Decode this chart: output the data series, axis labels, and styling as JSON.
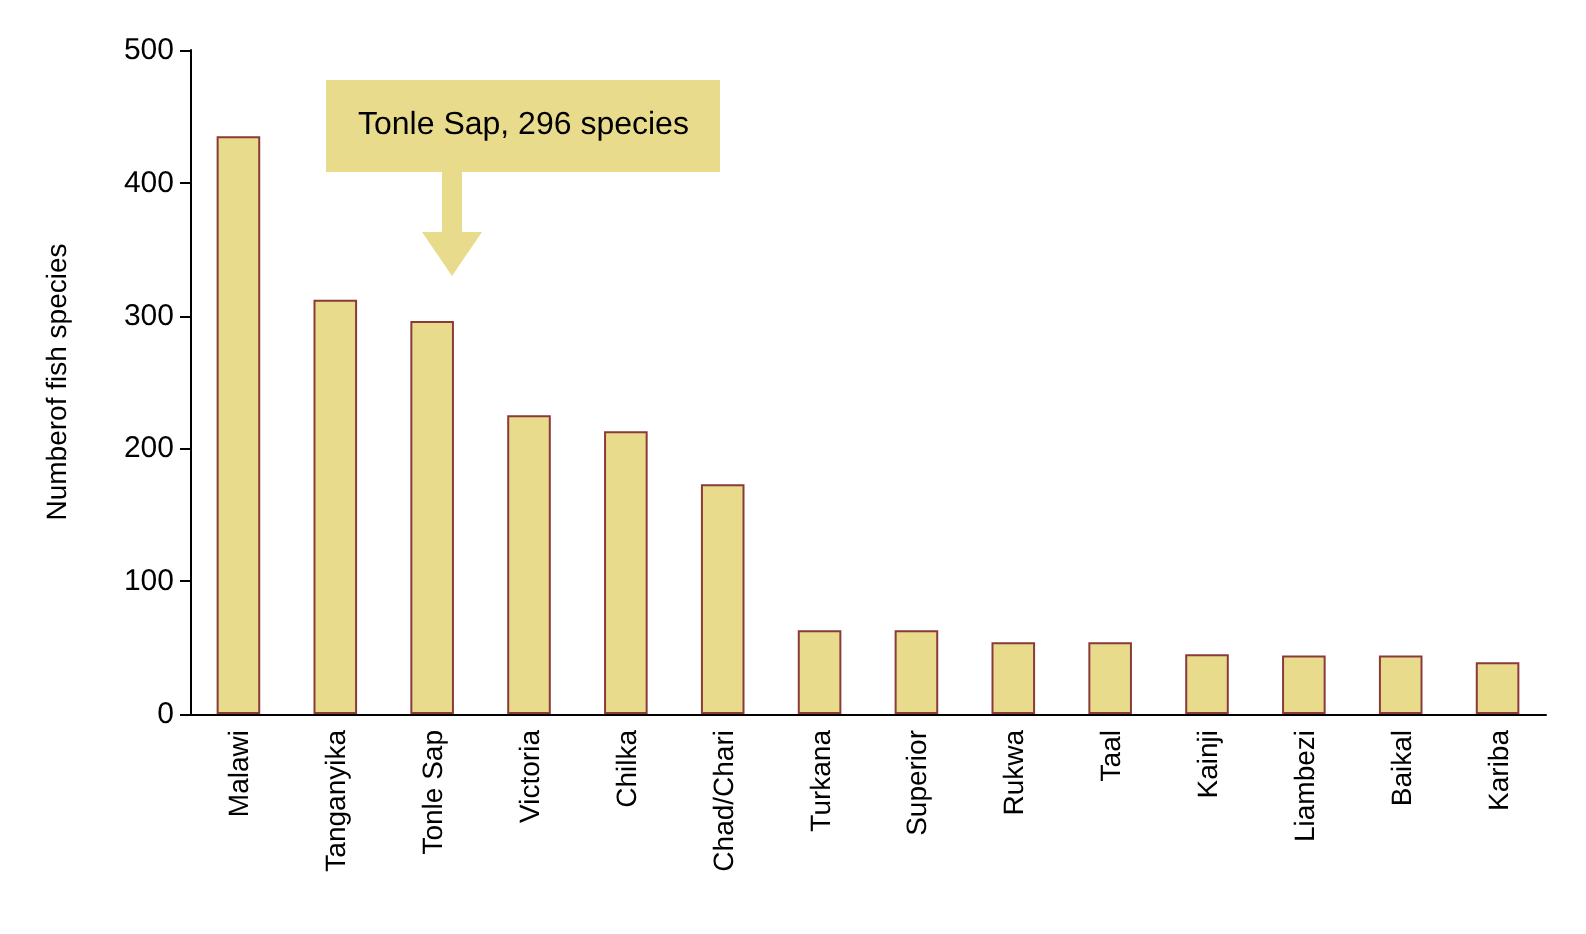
{
  "chart_data": {
    "type": "bar",
    "ylabel": "Numberof fish species",
    "categories": [
      "Malawi",
      "Tanganyika",
      "Tonle Sap",
      "Victoria",
      "Chilka",
      "Chad/Chari",
      "Turkana",
      "Superior",
      "Rukwa",
      "Taal",
      "Kainji",
      "Liambezi",
      "Baikal",
      "Kariba"
    ],
    "values": [
      435,
      312,
      296,
      225,
      213,
      173,
      63,
      63,
      54,
      54,
      45,
      44,
      44,
      39
    ],
    "color": "#e8dc8c",
    "ylim": [
      0,
      500
    ],
    "yticks": [
      0,
      100,
      200,
      300,
      400,
      500
    ],
    "grid": false,
    "annotations": [
      "Tonle Sap, 296 species"
    ]
  }
}
